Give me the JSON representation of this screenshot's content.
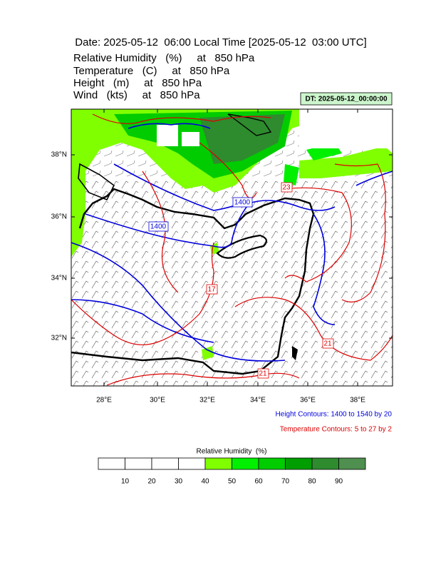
{
  "title": "Date: 2025-05-12  06:00 Local Time [2025-05-12  03:00 UTC]",
  "fields": [
    "Relative Humidity   (%)     at   850 hPa",
    "Temperature   (C)     at   850 hPa",
    "Height   (m)     at   850 hPa",
    "Wind   (kts)     at   850 hPa"
  ],
  "dt_label": "DT: 2025-05-12_00:00:00",
  "map": {
    "lon_labels": [
      "28°E",
      "30°E",
      "32°E",
      "34°E",
      "36°E",
      "38°E"
    ],
    "lat_labels": [
      "38°N",
      "36°N",
      "34°N",
      "32°N"
    ],
    "contour_labels": [
      "1400",
      "1400",
      "17",
      "23",
      "21",
      "21"
    ]
  },
  "notes": {
    "height": "Height Contours: 1400 to 1540 by 20",
    "temperature": "Temperature Contours: 5 to 27 by 2"
  },
  "colorbar": {
    "title": "Relative Humidity  (%)",
    "labels": [
      "10",
      "20",
      "30",
      "40",
      "50",
      "60",
      "70",
      "80",
      "90"
    ],
    "colors": [
      "#ffffff",
      "#ffffff",
      "#ffffff",
      "#ffffff",
      "#80ff00",
      "#00f000",
      "#00cc00",
      "#009e00",
      "#2e8b2e",
      "#4f8f4f"
    ]
  }
}
